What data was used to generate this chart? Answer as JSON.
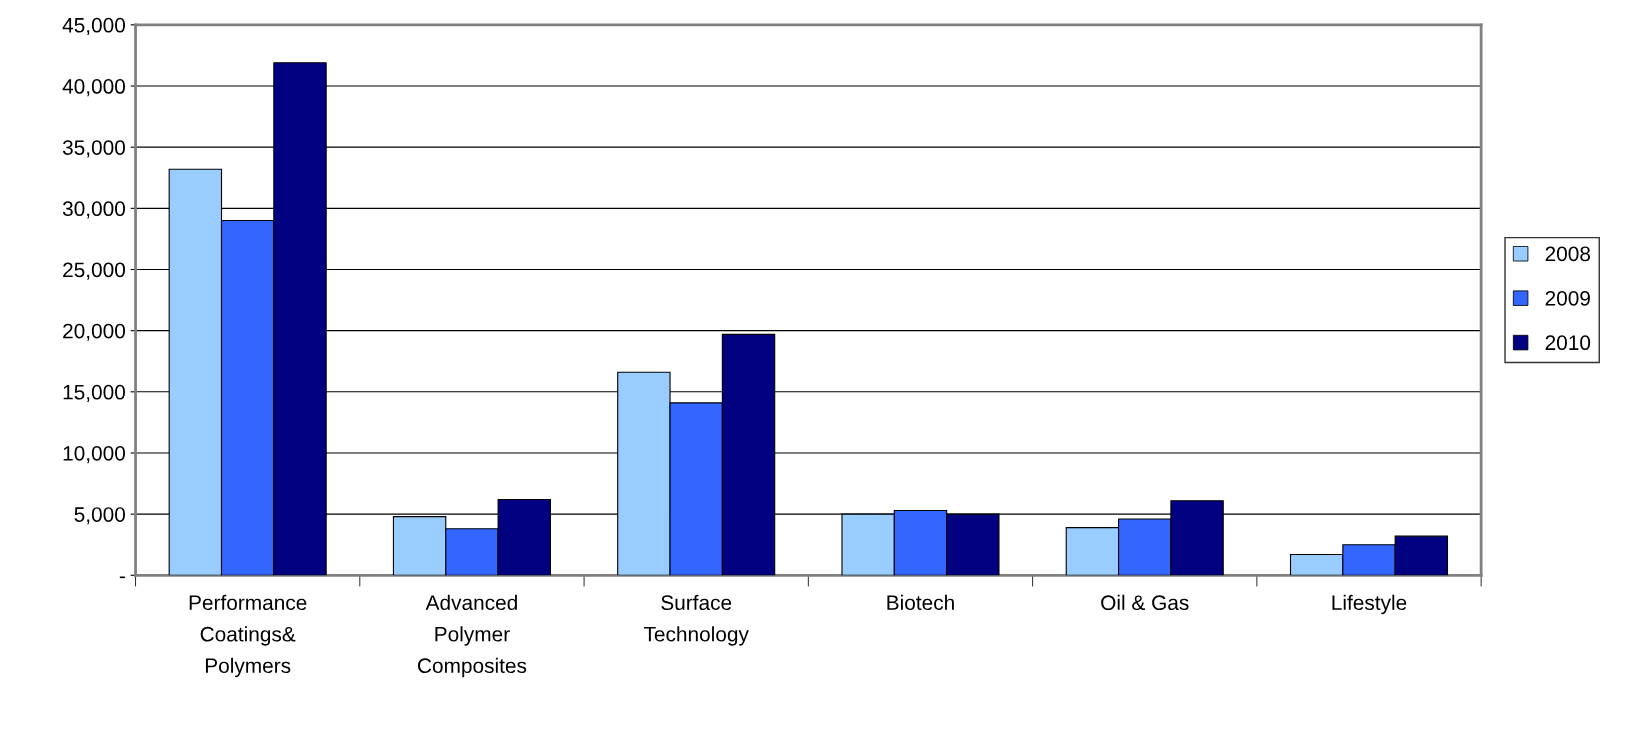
{
  "chart_data": {
    "type": "bar",
    "categories": [
      "Performance\nCoatings&\nPolymers",
      "Advanced\nPolymer\nComposites",
      "Surface\nTechnology",
      "Biotech",
      "Oil & Gas",
      "Lifestyle"
    ],
    "series": [
      {
        "name": "2008",
        "color": "#99ccff",
        "values": [
          33200,
          4800,
          16600,
          5000,
          3900,
          1700
        ]
      },
      {
        "name": "2009",
        "color": "#3366ff",
        "values": [
          29000,
          3800,
          14100,
          5300,
          4600,
          2500
        ]
      },
      {
        "name": "2010",
        "color": "#000080",
        "values": [
          41900,
          6200,
          19700,
          5000,
          6100,
          3200
        ]
      }
    ],
    "ylim": [
      0,
      45000
    ],
    "yticks": [
      {
        "value": 0,
        "label": "-"
      },
      {
        "value": 5000,
        "label": "5,000"
      },
      {
        "value": 10000,
        "label": "10,000"
      },
      {
        "value": 15000,
        "label": "15,000"
      },
      {
        "value": 20000,
        "label": "20,000"
      },
      {
        "value": 25000,
        "label": "25,000"
      },
      {
        "value": 30000,
        "label": "30,000"
      },
      {
        "value": 35000,
        "label": "35,000"
      },
      {
        "value": 40000,
        "label": "40,000"
      },
      {
        "value": 45000,
        "label": "45,000"
      }
    ],
    "grid": "y",
    "legend": "right"
  }
}
